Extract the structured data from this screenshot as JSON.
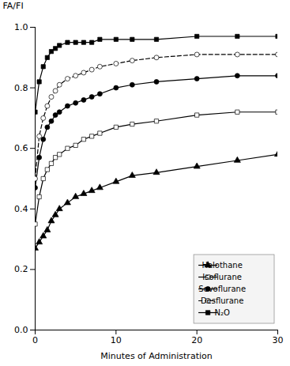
{
  "chart_data": {
    "type": "line",
    "xlabel": "Minutes of Administration",
    "ylabel": "FA/FI",
    "xlim": [
      0,
      30
    ],
    "ylim": [
      0,
      1.0
    ],
    "xticks": [
      0,
      10,
      20,
      30
    ],
    "yticks": [
      {
        "value": 0,
        "label": "0.0"
      },
      0.2,
      0.4,
      0.6,
      0.8,
      {
        "value": 1.0,
        "label": "1.0"
      }
    ],
    "grid": false,
    "legend": "lower right",
    "x": [
      0,
      0.5,
      1,
      1.5,
      2,
      2.5,
      3,
      4,
      5,
      6,
      7,
      8,
      10,
      12,
      15,
      20,
      25,
      30
    ],
    "series": [
      {
        "name": "Halothane",
        "color": "#000000",
        "marker": "triangle-filled",
        "line_style": "solid",
        "values": [
          0.27,
          0.29,
          0.31,
          0.33,
          0.36,
          0.38,
          0.4,
          0.42,
          0.44,
          0.45,
          0.46,
          0.47,
          0.49,
          0.51,
          0.52,
          0.54,
          0.56,
          0.58
        ]
      },
      {
        "name": "Isoflurane",
        "color": "#000000",
        "marker": "square-open",
        "line_style": "solid",
        "values": [
          0.35,
          0.44,
          0.5,
          0.53,
          0.55,
          0.57,
          0.58,
          0.6,
          0.61,
          0.63,
          0.64,
          0.65,
          0.67,
          0.68,
          0.69,
          0.71,
          0.72,
          0.72
        ]
      },
      {
        "name": "Sevoflurane",
        "color": "#000000",
        "marker": "circle-filled",
        "line_style": "solid",
        "values": [
          0.47,
          0.57,
          0.63,
          0.67,
          0.69,
          0.71,
          0.72,
          0.74,
          0.75,
          0.76,
          0.77,
          0.78,
          0.8,
          0.81,
          0.82,
          0.83,
          0.84,
          0.84
        ]
      },
      {
        "name": "Desflurane",
        "color": "#000000",
        "marker": "circle-open",
        "line_style": "dashed",
        "values": [
          0.5,
          0.64,
          0.7,
          0.74,
          0.77,
          0.79,
          0.81,
          0.83,
          0.84,
          0.85,
          0.86,
          0.87,
          0.88,
          0.89,
          0.9,
          0.91,
          0.91,
          0.91
        ]
      },
      {
        "name": "N₂O",
        "color": "#000000",
        "marker": "square-filled",
        "line_style": "solid",
        "values": [
          0.72,
          0.82,
          0.87,
          0.9,
          0.92,
          0.93,
          0.94,
          0.95,
          0.95,
          0.95,
          0.95,
          0.96,
          0.96,
          0.96,
          0.96,
          0.97,
          0.97,
          0.97
        ]
      }
    ]
  }
}
